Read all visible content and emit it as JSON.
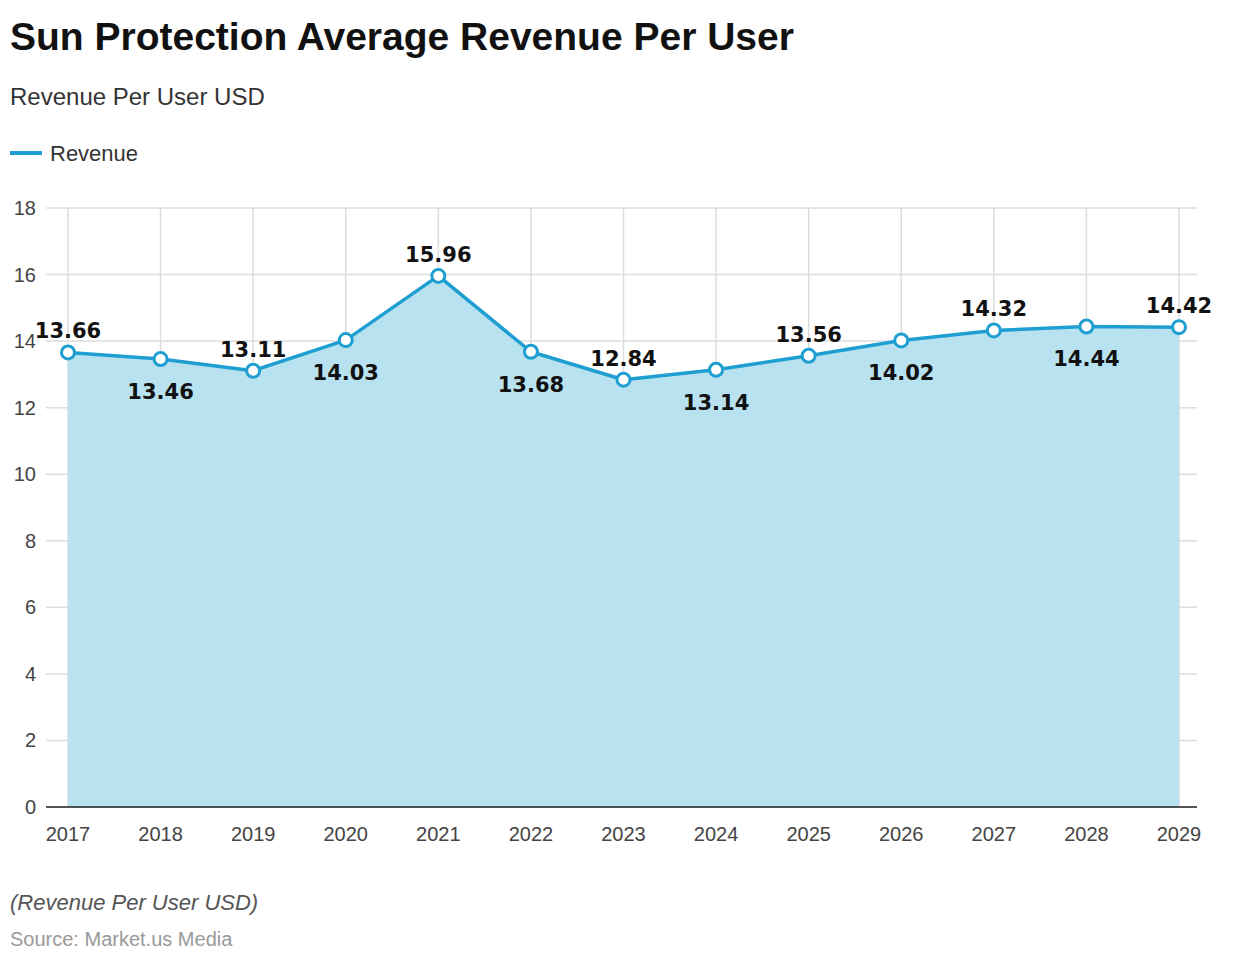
{
  "chart_data": {
    "type": "line",
    "title": "Sun Protection Average Revenue Per User",
    "subtitle": "Revenue Per User USD",
    "caption": "(Revenue Per User USD)",
    "source": "Source: Market.us Media",
    "categories": [
      "2017",
      "2018",
      "2019",
      "2020",
      "2021",
      "2022",
      "2023",
      "2024",
      "2025",
      "2026",
      "2027",
      "2028",
      "2029"
    ],
    "series": [
      {
        "name": "Revenue",
        "color": "#1f9fd1",
        "marker": "circle",
        "values": [
          13.66,
          13.46,
          13.11,
          14.03,
          15.96,
          13.68,
          12.84,
          13.14,
          13.56,
          14.02,
          14.32,
          14.44,
          14.42
        ]
      }
    ],
    "ylim": [
      0,
      18
    ],
    "yticks": [
      0,
      2,
      4,
      6,
      8,
      10,
      12,
      14,
      16,
      18
    ],
    "grid": true,
    "legend": "top-left",
    "data_labels": true
  }
}
